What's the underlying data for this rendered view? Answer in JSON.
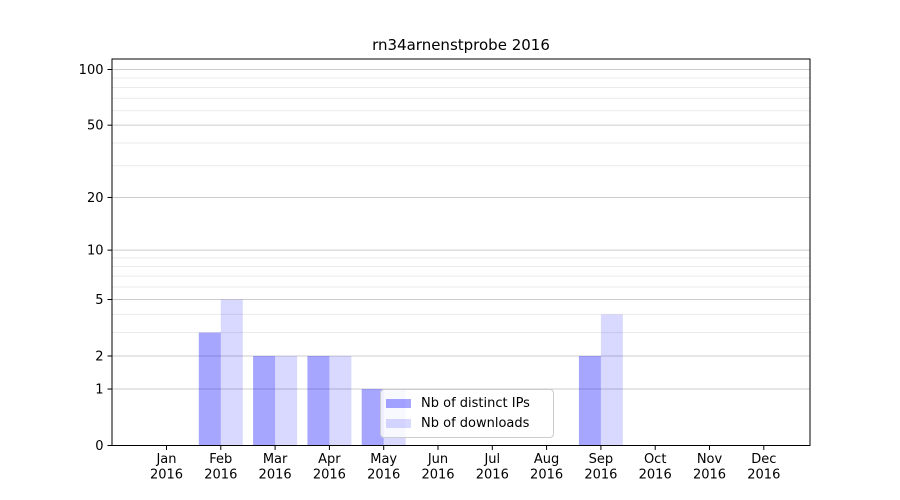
{
  "title": "rn34arnenstprobe 2016",
  "legend": {
    "position": "lower center",
    "items": [
      {
        "key": "distinct_ips",
        "label": "Nb of distinct IPs",
        "color": "#a6a6ff",
        "fill": "rgba(0,0,255,0.35)"
      },
      {
        "key": "downloads",
        "label": "Nb of downloads",
        "color": "#d9d9ff",
        "fill": "rgba(0,0,255,0.15)"
      }
    ]
  },
  "chart_data": {
    "type": "bar",
    "title": "rn34arnenstprobe 2016",
    "xlabel": "",
    "ylabel": "",
    "year": "2016",
    "categories": [
      "Jan",
      "Feb",
      "Mar",
      "Apr",
      "May",
      "Jun",
      "Jul",
      "Aug",
      "Sep",
      "Oct",
      "Nov",
      "Dec"
    ],
    "series": [
      {
        "key": "distinct_ips",
        "name": "Nb of distinct IPs",
        "color": "#a6a6ff",
        "fill": "rgba(0,0,255,0.35)",
        "values": [
          0,
          3,
          2,
          2,
          1,
          0,
          0,
          0,
          2,
          0,
          0,
          0
        ]
      },
      {
        "key": "downloads",
        "name": "Nb of downloads",
        "color": "#d9d9ff",
        "fill": "rgba(0,0,255,0.15)",
        "values": [
          0,
          5,
          2,
          2,
          1,
          0,
          0,
          0,
          4,
          0,
          0,
          0
        ]
      }
    ],
    "y_scale": "log1p",
    "y_major_ticks": [
      0,
      1,
      2,
      5,
      10,
      20,
      50,
      100
    ],
    "y_minor_ticks": [
      3,
      4,
      6,
      7,
      8,
      9,
      30,
      40,
      60,
      70,
      80,
      90
    ],
    "ylim": [
      0,
      114
    ],
    "grid": true,
    "colors": {
      "background": "#ffffff",
      "axis": "#000000",
      "tick_text": "#000000",
      "major_grid": "#cccccc",
      "minor_grid": "#ebebeb"
    }
  }
}
